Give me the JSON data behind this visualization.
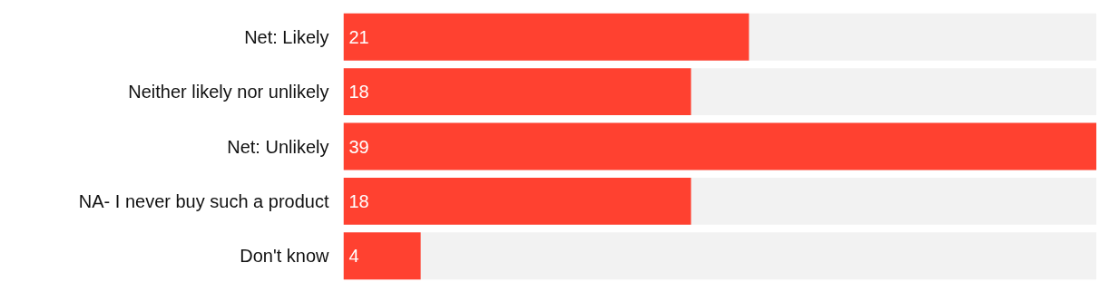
{
  "chart_data": {
    "type": "bar",
    "orientation": "horizontal",
    "categories": [
      "Net: Likely",
      "Neither likely nor unlikely",
      "Net: Unlikely",
      "NA- I never buy such a product",
      "Don't know"
    ],
    "values": [
      21,
      18,
      39,
      18,
      4
    ],
    "color": "#ff4130",
    "xlim": [
      0,
      39
    ],
    "data_labels": true,
    "tick_labels": "y",
    "grid": false
  }
}
